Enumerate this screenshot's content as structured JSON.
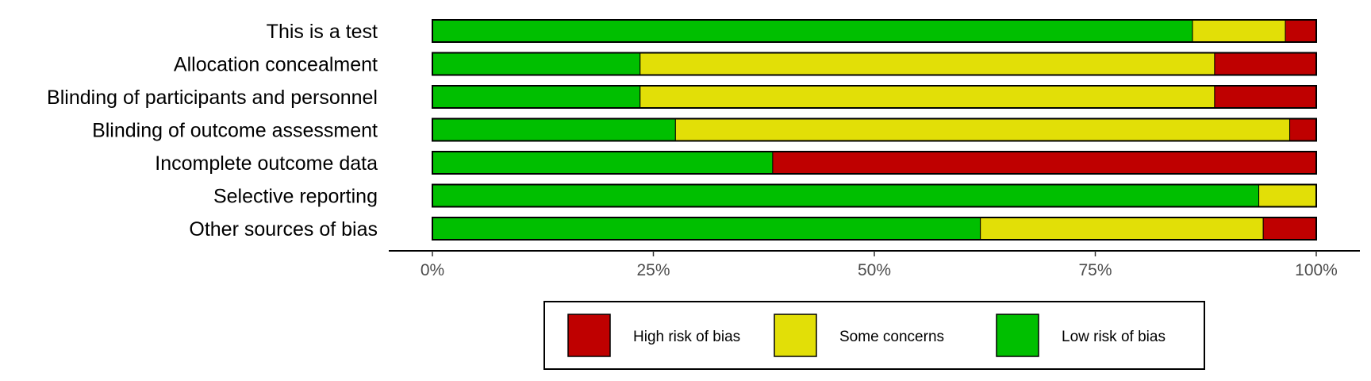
{
  "chart_data": {
    "type": "bar",
    "stacked": true,
    "orientation": "horizontal",
    "normalized": true,
    "categories": [
      "This is a test",
      "Allocation concealment",
      "Blinding of participants and personnel",
      "Blinding of outcome assessment",
      "Incomplete outcome data",
      "Selective reporting",
      "Other sources of bias"
    ],
    "series": [
      {
        "name": "Low risk of bias",
        "color": "#00BF00",
        "values": [
          86,
          23.5,
          23.5,
          27.5,
          38.5,
          93.5,
          62
        ]
      },
      {
        "name": "Some concerns",
        "color": "#E2DF07",
        "values": [
          10.5,
          65,
          65,
          69.5,
          0,
          6.5,
          32
        ]
      },
      {
        "name": "High risk of bias",
        "color": "#BF0000",
        "values": [
          3.5,
          11.5,
          11.5,
          3,
          61.5,
          0,
          6
        ]
      }
    ],
    "x_ticks": [
      "0%",
      "25%",
      "50%",
      "75%",
      "100%"
    ],
    "xlim": [
      0,
      100
    ],
    "title": "",
    "xlabel": "",
    "ylabel": "",
    "grid": false,
    "legend": {
      "position": "bottom",
      "order": [
        "High risk of bias",
        "Some concerns",
        "Low risk of bias"
      ]
    }
  }
}
